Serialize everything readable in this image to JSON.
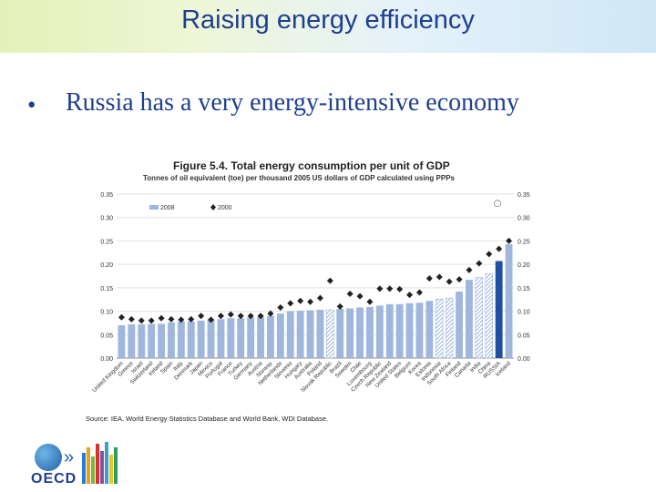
{
  "slide": {
    "title": "Raising energy efficiency",
    "bullet": "Russia has a very energy-intensive economy",
    "logo_text": "OECD"
  },
  "chart_data": {
    "type": "bar",
    "figure_title": "Figure 5.4.  Total energy consumption per unit of GDP",
    "subtitle": "Tonnes of oil equivalent (toe) per thousand 2005 US dollars of GDP calculated using PPPs",
    "source": "Source: IEA, World Energy Statistics Database and World Bank, WDI Database.",
    "legend": [
      {
        "name": "2008",
        "marker": "bar",
        "color": "#9fb6dd"
      },
      {
        "name": "2000",
        "marker": "diamond",
        "color": "#222222"
      }
    ],
    "ylim": [
      0,
      0.35
    ],
    "yticks": [
      "0.00",
      "0.05",
      "0.10",
      "0.15",
      "0.20",
      "0.25",
      "0.30",
      "0.35"
    ],
    "categories": [
      "United Kingdom",
      "Greece",
      "Israel",
      "Switzerland",
      "Ireland",
      "Spain",
      "Italy",
      "Denmark",
      "Japan",
      "Mexico",
      "Portugal",
      "France",
      "Turkey",
      "Germany",
      "Austria",
      "Norway",
      "Netherlands",
      "Slovenia",
      "Hungary",
      "Australia",
      "Poland",
      "Slovak Republic",
      "Brazil",
      "Sweden",
      "Chile",
      "Luxembourg",
      "Czech Republic",
      "New Zealand",
      "United States",
      "Belgium",
      "Korea",
      "Estonia",
      "Indonesia",
      "South Africa",
      "Finland",
      "Canada",
      "India",
      "China",
      "RUSSIA",
      "Iceland"
    ],
    "series": [
      {
        "name": "2008",
        "values": [
          0.07,
          0.072,
          0.072,
          0.073,
          0.073,
          0.076,
          0.078,
          0.078,
          0.08,
          0.082,
          0.083,
          0.085,
          0.085,
          0.087,
          0.088,
          0.09,
          0.095,
          0.1,
          0.101,
          0.102,
          0.103,
          0.103,
          0.105,
          0.106,
          0.108,
          0.109,
          0.112,
          0.115,
          0.115,
          0.117,
          0.118,
          0.122,
          0.126,
          0.128,
          0.142,
          0.167,
          0.172,
          0.18,
          0.207,
          0.243
        ]
      },
      {
        "name": "2000",
        "values": [
          0.087,
          0.083,
          0.08,
          0.08,
          0.085,
          0.083,
          0.082,
          0.083,
          0.09,
          0.082,
          0.09,
          0.093,
          0.09,
          0.09,
          0.09,
          0.095,
          0.108,
          0.117,
          0.122,
          0.12,
          0.128,
          0.165,
          0.11,
          0.137,
          0.132,
          0.12,
          0.148,
          0.148,
          0.147,
          0.135,
          0.14,
          0.17,
          0.173,
          0.163,
          0.168,
          0.188,
          0.202,
          0.222,
          0.233,
          0.25
        ]
      }
    ],
    "highlight": {
      "RUSSIA": "#1f4f9f",
      "Iceland": "#9fb6dd"
    },
    "hatched": [
      "Slovak Republic",
      "Indonesia",
      "South Africa",
      "India",
      "China"
    ],
    "iceland_2000_note": "○"
  }
}
